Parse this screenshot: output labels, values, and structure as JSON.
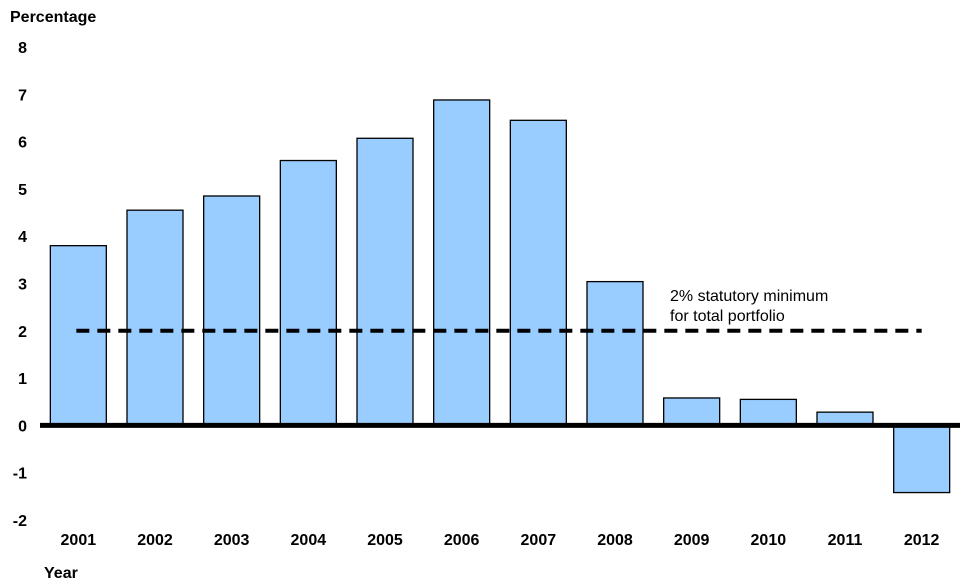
{
  "chart_data": {
    "type": "bar",
    "title": "",
    "ylabel": "Percentage",
    "xlabel": "Year",
    "categories": [
      "2001",
      "2002",
      "2003",
      "2004",
      "2005",
      "2006",
      "2007",
      "2008",
      "2009",
      "2010",
      "2011",
      "2012"
    ],
    "values": [
      3.8,
      4.55,
      4.85,
      5.6,
      6.07,
      6.88,
      6.45,
      3.04,
      0.58,
      0.55,
      0.28,
      -1.42
    ],
    "ylim": [
      -2,
      8
    ],
    "yticks": [
      "-2",
      "-1",
      "0",
      "1",
      "2",
      "3",
      "4",
      "5",
      "6",
      "7",
      "8"
    ],
    "grid": false,
    "bar_color": "#99ccff",
    "reference_line": {
      "value": 2,
      "style": "dashed",
      "label_line1": "2% statutory minimum",
      "label_line2": "for total portfolio"
    }
  }
}
